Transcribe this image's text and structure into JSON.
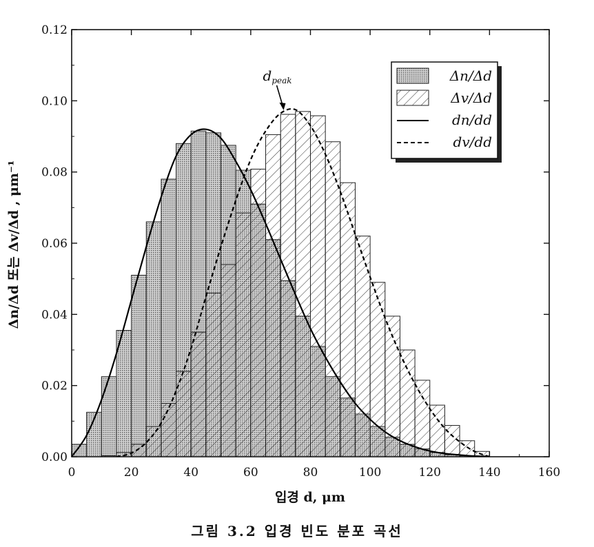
{
  "caption": "그림 3.2  입경 빈도 분포 곡선",
  "chart_data": {
    "type": "bar",
    "xlabel": "입경 d, μm",
    "ylabel": "Δn/Δd 또는 Δv/Δd , μm⁻¹",
    "xlim": [
      0,
      160
    ],
    "ylim": [
      0,
      0.12
    ],
    "xticks": [
      0,
      20,
      40,
      60,
      80,
      100,
      120,
      140,
      160
    ],
    "yticks": [
      "0.00",
      "0.02",
      "0.04",
      "0.06",
      "0.08",
      "0.10",
      "0.12"
    ],
    "grid": false,
    "legend_position": "top-right",
    "bin_width": 5,
    "bin_starts": [
      0,
      5,
      10,
      15,
      20,
      25,
      30,
      35,
      40,
      45,
      50,
      55,
      60,
      65,
      70,
      75,
      80,
      85,
      90,
      95,
      100,
      105,
      110,
      115,
      120,
      125,
      130,
      135
    ],
    "series": [
      {
        "name": "Δn/Δd",
        "kind": "histogram",
        "pattern": "dotted",
        "values": [
          0.0035,
          0.0125,
          0.0225,
          0.0355,
          0.051,
          0.066,
          0.078,
          0.088,
          0.0915,
          0.091,
          0.0875,
          0.0805,
          0.071,
          0.061,
          0.0495,
          0.0395,
          0.031,
          0.0225,
          0.0165,
          0.012,
          0.0085,
          0.0055,
          0.0035,
          0.0022,
          0.0012,
          0.0006,
          0.0003,
          0.0001
        ]
      },
      {
        "name": "Δv/Δd",
        "kind": "histogram",
        "pattern": "hatched",
        "values": [
          0.0,
          0.0,
          0.0003,
          0.0012,
          0.0035,
          0.0085,
          0.015,
          0.024,
          0.035,
          0.046,
          0.054,
          0.0685,
          0.0808,
          0.0905,
          0.0962,
          0.097,
          0.0958,
          0.0885,
          0.077,
          0.062,
          0.049,
          0.0395,
          0.03,
          0.0215,
          0.0145,
          0.0088,
          0.0045,
          0.0015
        ]
      },
      {
        "name": "dn/dd",
        "kind": "curve",
        "style": "solid",
        "x": [
          0,
          5,
          10,
          15,
          20,
          25,
          30,
          35,
          40,
          45,
          50,
          55,
          60,
          65,
          70,
          75,
          80,
          85,
          90,
          95,
          100,
          105,
          110,
          115,
          120,
          125,
          130,
          135,
          140
        ],
        "values": [
          0.0,
          0.006,
          0.016,
          0.029,
          0.044,
          0.059,
          0.073,
          0.0845,
          0.0905,
          0.092,
          0.0895,
          0.083,
          0.075,
          0.0655,
          0.0555,
          0.0455,
          0.036,
          0.028,
          0.021,
          0.015,
          0.0105,
          0.007,
          0.0045,
          0.0028,
          0.0016,
          0.0009,
          0.0005,
          0.0002,
          0.0001
        ]
      },
      {
        "name": "dv/dd",
        "kind": "curve",
        "style": "dashed",
        "x": [
          15,
          20,
          25,
          30,
          35,
          40,
          45,
          50,
          55,
          60,
          65,
          70,
          75,
          80,
          85,
          90,
          95,
          100,
          105,
          110,
          115,
          120,
          125,
          130,
          135,
          140
        ],
        "values": [
          0.0,
          0.001,
          0.004,
          0.0095,
          0.0185,
          0.0305,
          0.045,
          0.059,
          0.072,
          0.0835,
          0.0915,
          0.0965,
          0.0975,
          0.093,
          0.085,
          0.0745,
          0.0625,
          0.0505,
          0.039,
          0.029,
          0.0205,
          0.0135,
          0.008,
          0.0042,
          0.0015,
          0.0
        ]
      }
    ],
    "annotations": [
      {
        "text": "d",
        "subscript": "peak",
        "x": 71,
        "y": 0.097
      }
    ],
    "colors": {
      "dotted_fill": "#bdbdbd",
      "hatch_line": "#333333",
      "axis": "#111111",
      "legend_shadow": "#222222"
    }
  }
}
